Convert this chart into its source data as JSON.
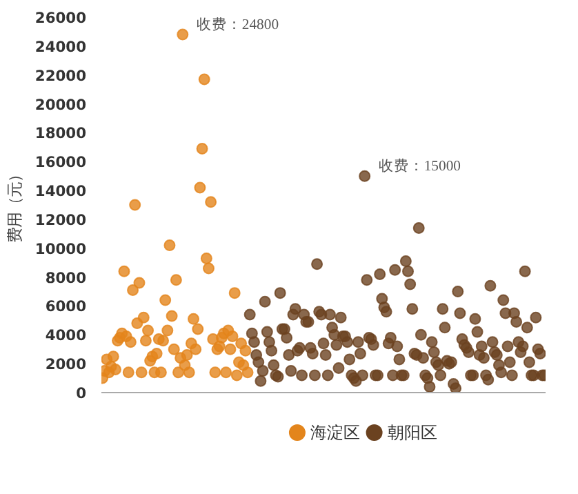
{
  "chart_data": {
    "type": "scatter",
    "ylabel": "费用（元）",
    "ylim": [
      0,
      26000
    ],
    "yticks": [
      0,
      2000,
      4000,
      6000,
      8000,
      10000,
      12000,
      14000,
      16000,
      18000,
      20000,
      22000,
      24000,
      26000
    ],
    "grid": false,
    "legend": "bottom",
    "marker": "circle",
    "annotations": [
      "收费：24800",
      "收费：15000"
    ],
    "categories": [
      null,
      null,
      null,
      null,
      null,
      null,
      null,
      null,
      null,
      null,
      null,
      null,
      null,
      null,
      null,
      null,
      null,
      null,
      null,
      null,
      null,
      null,
      null,
      null,
      null,
      null,
      null,
      null,
      null,
      null,
      null,
      null,
      null,
      null,
      null,
      null,
      null,
      null,
      null,
      null,
      null,
      null,
      null,
      null,
      null,
      null,
      null,
      null,
      null,
      null,
      null,
      null,
      null,
      null,
      null,
      null,
      null,
      null,
      null,
      null,
      null,
      null,
      null,
      null,
      null,
      null,
      null,
      null,
      null,
      null,
      null,
      null,
      null,
      null,
      null,
      null,
      null,
      null,
      null,
      null,
      null,
      null,
      null,
      null,
      null,
      null,
      null,
      null,
      null,
      null,
      null,
      null,
      null,
      null,
      null,
      null,
      null,
      null,
      null,
      null,
      null,
      null,
      null,
      null,
      null,
      null,
      null,
      null,
      null,
      null,
      null,
      null,
      null,
      null,
      null,
      null,
      null,
      null,
      null,
      null,
      null,
      null,
      null,
      null,
      null,
      null,
      null,
      null,
      null,
      null,
      null,
      null,
      null,
      null,
      null,
      null,
      null,
      null,
      null,
      null,
      null,
      null,
      null,
      null,
      null,
      null,
      null,
      null,
      null,
      null,
      null,
      null,
      null,
      null,
      null,
      null,
      null,
      null,
      null,
      null,
      null,
      null,
      null,
      null,
      null,
      null,
      null,
      null,
      null,
      null,
      null,
      null,
      null,
      null,
      null,
      null,
      null,
      null,
      null,
      null,
      null,
      null,
      null,
      null,
      null,
      null,
      null,
      null,
      null,
      null,
      null,
      null,
      null,
      null,
      null,
      null,
      null,
      null,
      null,
      null,
      null,
      null,
      null,
      null,
      null
    ],
    "series": [
      {
        "name": "海淀区",
        "color": "#e3851c",
        "values": [
          1000,
          1500,
          2300,
          1400,
          1800,
          2500,
          1600,
          3600,
          3800,
          4100,
          8400,
          3900,
          1400,
          3500,
          7100,
          13000,
          4800,
          7600,
          1400,
          5200,
          3600,
          4300,
          2200,
          2500,
          1400,
          2700,
          3700,
          1400,
          3600,
          6400,
          4300,
          10200,
          5300,
          3000,
          7800,
          1400,
          2400,
          24800,
          1900,
          2600,
          1400,
          3400,
          5100,
          3000,
          4400,
          14200,
          16900,
          21700,
          9300,
          8600,
          13200,
          3700,
          1400,
          3000,
          3200,
          3800,
          4100,
          1400,
          4300,
          3000,
          3900,
          6900,
          1200,
          2100,
          3400,
          1900,
          2900,
          1400,
          null,
          null,
          null,
          null,
          null,
          null,
          null,
          null,
          null,
          null,
          null,
          null,
          null,
          null,
          null,
          null,
          null,
          null,
          null,
          null,
          null,
          null,
          null,
          null,
          null,
          null,
          null,
          null,
          null,
          null,
          null,
          null,
          null,
          null,
          null,
          null,
          null,
          null,
          null,
          null,
          null,
          null,
          null,
          null,
          null,
          null,
          null,
          null,
          null,
          null,
          null,
          null,
          null,
          null,
          null,
          null,
          null,
          null,
          null,
          null,
          null,
          null,
          null,
          null,
          null,
          null,
          null,
          null,
          null,
          null,
          null,
          null,
          null,
          null,
          null,
          null,
          null,
          null,
          null,
          null,
          null,
          null,
          null,
          null,
          null,
          null,
          null,
          null,
          null,
          null,
          null,
          null,
          null,
          null,
          null,
          null,
          null,
          null,
          null,
          null,
          null,
          null,
          null,
          null,
          null,
          null,
          null,
          null,
          null,
          null,
          null,
          null,
          null,
          null,
          null,
          null,
          null,
          null,
          null,
          null,
          null,
          null,
          null,
          null,
          null,
          null,
          null,
          null,
          null,
          null,
          null,
          null,
          null,
          null,
          null,
          null,
          null
        ]
      },
      {
        "name": "朝阳区",
        "color": "#6b4220",
        "values": [
          null,
          null,
          null,
          null,
          null,
          null,
          null,
          null,
          null,
          null,
          null,
          null,
          null,
          null,
          null,
          null,
          null,
          null,
          null,
          null,
          null,
          null,
          null,
          null,
          null,
          null,
          null,
          null,
          null,
          null,
          null,
          null,
          null,
          null,
          null,
          null,
          null,
          null,
          null,
          null,
          null,
          null,
          null,
          null,
          null,
          null,
          null,
          null,
          null,
          null,
          null,
          null,
          null,
          null,
          null,
          null,
          null,
          null,
          null,
          null,
          null,
          null,
          null,
          null,
          null,
          null,
          null,
          null,
          5400,
          4100,
          3500,
          2600,
          2100,
          800,
          1500,
          6300,
          4200,
          3500,
          2900,
          1900,
          1200,
          1100,
          6900,
          4400,
          4400,
          3800,
          2600,
          1500,
          5400,
          5800,
          2900,
          3100,
          1200,
          5400,
          4900,
          4900,
          3100,
          2700,
          1200,
          8900,
          5600,
          5400,
          3400,
          2600,
          1200,
          5400,
          4500,
          4000,
          3300,
          1700,
          5200,
          3900,
          3900,
          3500,
          2300,
          1200,
          1000,
          800,
          3500,
          2700,
          1200,
          15000,
          7800,
          3800,
          3700,
          3300,
          1200,
          1200,
          8200,
          6500,
          5900,
          5600,
          3400,
          3800,
          1200,
          8500,
          3200,
          2300,
          1200,
          1200,
          9100,
          8400,
          7500,
          5800,
          2700,
          2600,
          11400,
          4000,
          2400,
          1200,
          1000,
          400,
          3500,
          2800,
          2100,
          1900,
          1200,
          5800,
          4500,
          2200,
          2000,
          2100,
          600,
          300,
          7000,
          5500,
          3700,
          3300,
          3100,
          2800,
          1200,
          1200,
          5100,
          4200,
          2600,
          3200,
          2400,
          1200,
          900,
          7400,
          3500,
          2800,
          2600,
          1900,
          1400,
          6400,
          5500,
          3200,
          2100,
          1200,
          5500,
          4900,
          3500,
          2800,
          3200,
          8400,
          4500,
          2100,
          1200,
          1200,
          5200,
          3000,
          2700,
          1200,
          1200
        ]
      }
    ]
  }
}
